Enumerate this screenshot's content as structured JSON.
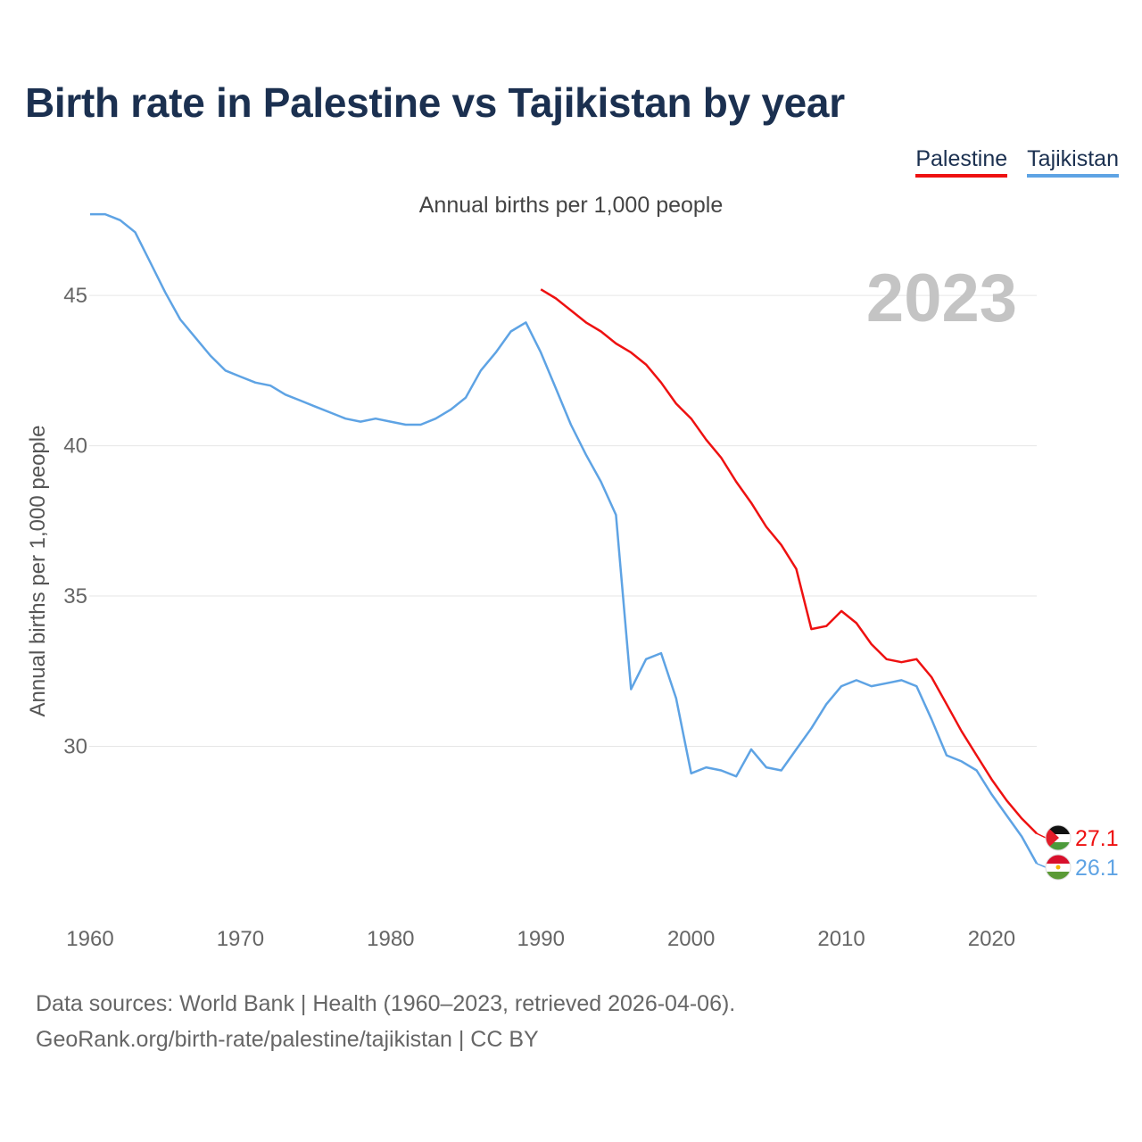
{
  "title": "Birth rate in Palestine vs Tajikistan by year",
  "subtitle": "Annual births per 1,000 people",
  "legend": [
    {
      "label": "Palestine",
      "color": "#ee1111"
    },
    {
      "label": "Tajikistan",
      "color": "#5ea3e4"
    }
  ],
  "footer": {
    "line1": "Data sources: World Bank | Health (1960–2023, retrieved 2026-04-06).",
    "line2": "GeoRank.org/birth-rate/palestine/tajikistan | CC BY"
  },
  "chart_data": {
    "type": "line",
    "title": "Birth rate in Palestine vs Tajikistan by year",
    "ylabel": "Annual births per 1,000 people",
    "xlabel": "",
    "xlim": [
      1960,
      2023
    ],
    "ylim": [
      25,
      48
    ],
    "x_ticks": [
      1960,
      1970,
      1980,
      1990,
      2000,
      2010,
      2020
    ],
    "y_ticks": [
      30,
      35,
      40,
      45
    ],
    "grid": true,
    "highlight_year": "2023",
    "series": [
      {
        "name": "Palestine",
        "color": "#ee1111",
        "end_label": "27.1",
        "points": [
          [
            1990,
            45.2
          ],
          [
            1991,
            44.9
          ],
          [
            1992,
            44.5
          ],
          [
            1993,
            44.1
          ],
          [
            1994,
            43.8
          ],
          [
            1995,
            43.4
          ],
          [
            1996,
            43.1
          ],
          [
            1997,
            42.7
          ],
          [
            1998,
            42.1
          ],
          [
            1999,
            41.4
          ],
          [
            2000,
            40.9
          ],
          [
            2001,
            40.2
          ],
          [
            2002,
            39.6
          ],
          [
            2003,
            38.8
          ],
          [
            2004,
            38.1
          ],
          [
            2005,
            37.3
          ],
          [
            2006,
            36.7
          ],
          [
            2007,
            35.9
          ],
          [
            2008,
            33.9
          ],
          [
            2009,
            34.0
          ],
          [
            2010,
            34.5
          ],
          [
            2011,
            34.1
          ],
          [
            2012,
            33.4
          ],
          [
            2013,
            32.9
          ],
          [
            2014,
            32.8
          ],
          [
            2015,
            32.9
          ],
          [
            2016,
            32.3
          ],
          [
            2017,
            31.4
          ],
          [
            2018,
            30.5
          ],
          [
            2019,
            29.7
          ],
          [
            2020,
            28.9
          ],
          [
            2021,
            28.2
          ],
          [
            2022,
            27.6
          ],
          [
            2023,
            27.1
          ]
        ]
      },
      {
        "name": "Tajikistan",
        "color": "#5ea3e4",
        "end_label": "26.1",
        "points": [
          [
            1960,
            47.7
          ],
          [
            1961,
            47.7
          ],
          [
            1962,
            47.5
          ],
          [
            1963,
            47.1
          ],
          [
            1964,
            46.1
          ],
          [
            1965,
            45.1
          ],
          [
            1966,
            44.2
          ],
          [
            1967,
            43.6
          ],
          [
            1968,
            43.0
          ],
          [
            1969,
            42.5
          ],
          [
            1970,
            42.3
          ],
          [
            1971,
            42.1
          ],
          [
            1972,
            42.0
          ],
          [
            1973,
            41.7
          ],
          [
            1974,
            41.5
          ],
          [
            1975,
            41.3
          ],
          [
            1976,
            41.1
          ],
          [
            1977,
            40.9
          ],
          [
            1978,
            40.8
          ],
          [
            1979,
            40.9
          ],
          [
            1980,
            40.8
          ],
          [
            1981,
            40.7
          ],
          [
            1982,
            40.7
          ],
          [
            1983,
            40.9
          ],
          [
            1984,
            41.2
          ],
          [
            1985,
            41.6
          ],
          [
            1986,
            42.5
          ],
          [
            1987,
            43.1
          ],
          [
            1988,
            43.8
          ],
          [
            1989,
            44.1
          ],
          [
            1990,
            43.1
          ],
          [
            1991,
            41.9
          ],
          [
            1992,
            40.7
          ],
          [
            1993,
            39.7
          ],
          [
            1994,
            38.8
          ],
          [
            1995,
            37.7
          ],
          [
            1996,
            31.9
          ],
          [
            1997,
            32.9
          ],
          [
            1998,
            33.1
          ],
          [
            1999,
            31.6
          ],
          [
            2000,
            29.1
          ],
          [
            2001,
            29.3
          ],
          [
            2002,
            29.2
          ],
          [
            2003,
            29.0
          ],
          [
            2004,
            29.9
          ],
          [
            2005,
            29.3
          ],
          [
            2006,
            29.2
          ],
          [
            2007,
            29.9
          ],
          [
            2008,
            30.6
          ],
          [
            2009,
            31.4
          ],
          [
            2010,
            32.0
          ],
          [
            2011,
            32.2
          ],
          [
            2012,
            32.0
          ],
          [
            2013,
            32.1
          ],
          [
            2014,
            32.2
          ],
          [
            2015,
            32.0
          ],
          [
            2016,
            30.9
          ],
          [
            2017,
            29.7
          ],
          [
            2018,
            29.5
          ],
          [
            2019,
            29.2
          ],
          [
            2020,
            28.4
          ],
          [
            2021,
            27.7
          ],
          [
            2022,
            27.0
          ],
          [
            2023,
            26.1
          ]
        ]
      }
    ]
  }
}
